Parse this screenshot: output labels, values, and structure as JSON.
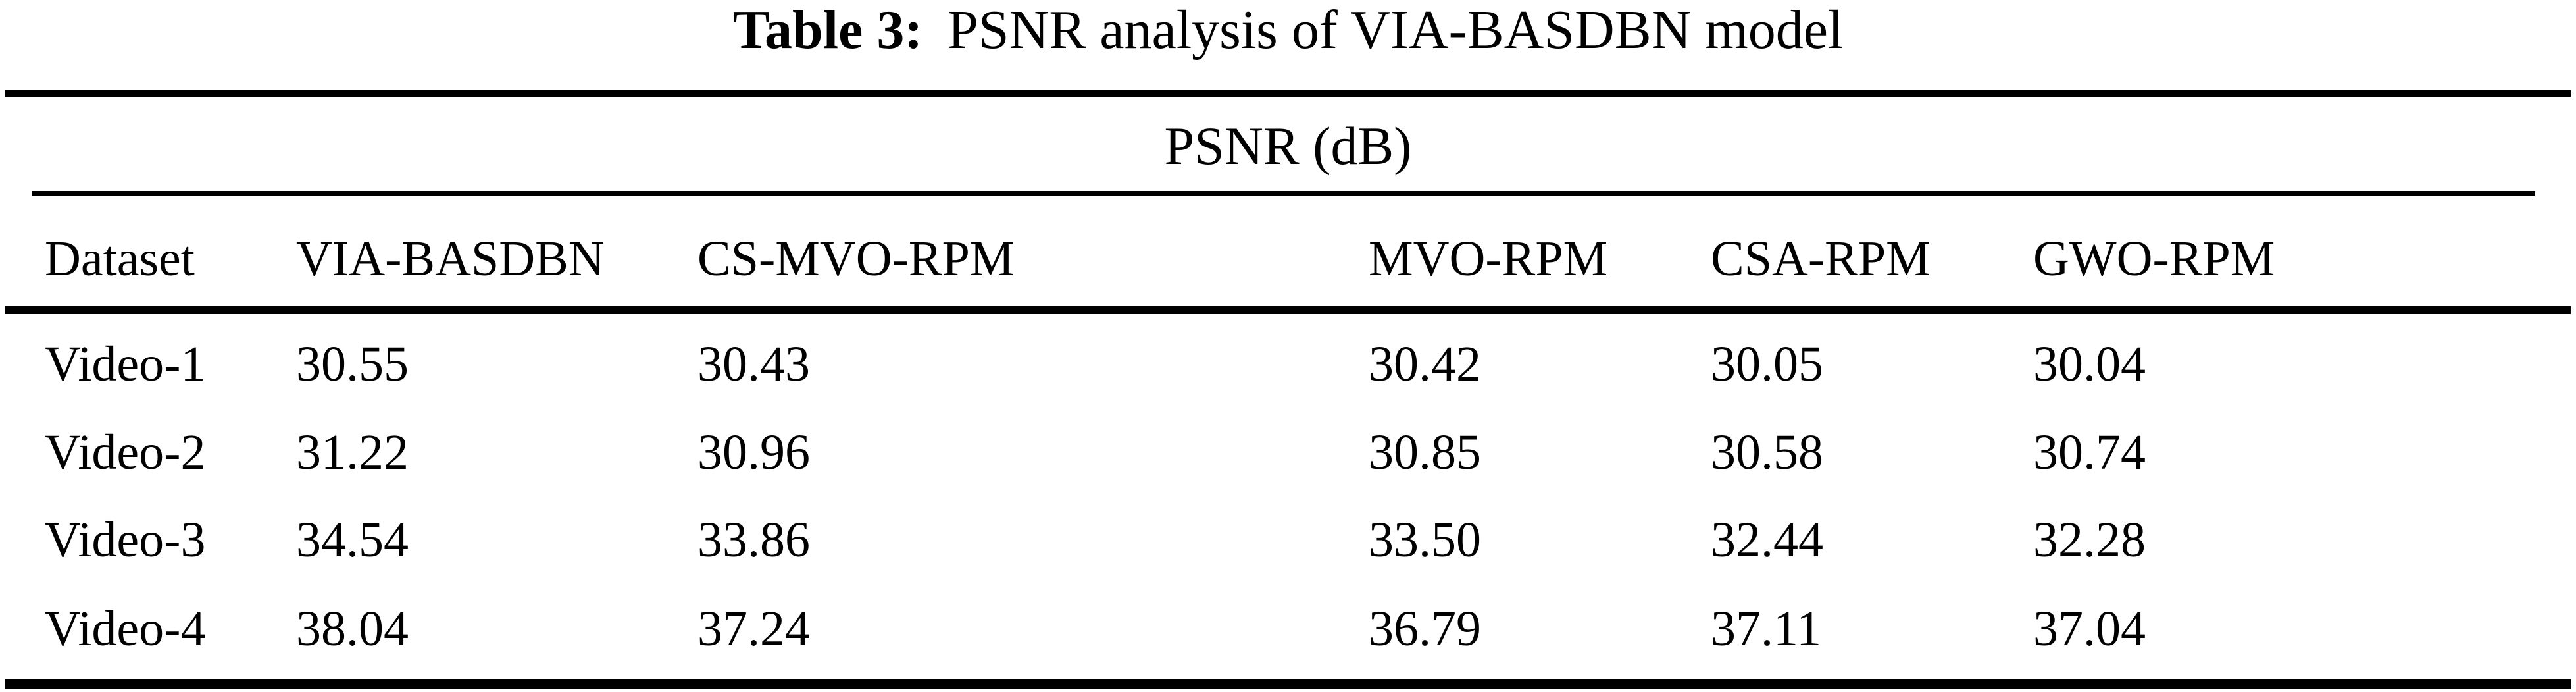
{
  "page": {
    "background_color": "#ffffff",
    "text_color": "#000000"
  },
  "caption": {
    "label": "Table 3:",
    "text": "PSNR analysis of VIA-BASDBN model"
  },
  "table": {
    "group_header": "PSNR (dB)",
    "columns": [
      "Dataset",
      "VIA-BASDBN",
      "CS-MVO-RPM",
      "MVO-RPM",
      "CSA-RPM",
      "GWO-RPM"
    ],
    "rows": [
      {
        "dataset": "Video-1",
        "values": [
          "30.55",
          "30.43",
          "30.42",
          "30.05",
          "30.04"
        ]
      },
      {
        "dataset": "Video-2",
        "values": [
          "31.22",
          "30.96",
          "30.85",
          "30.58",
          "30.74"
        ]
      },
      {
        "dataset": "Video-3",
        "values": [
          "34.54",
          "33.86",
          "33.50",
          "32.44",
          "32.28"
        ]
      },
      {
        "dataset": "Video-4",
        "values": [
          "38.04",
          "37.24",
          "36.79",
          "37.11",
          "37.04"
        ]
      }
    ]
  },
  "chart_data": {
    "type": "table",
    "title": "Table 3: PSNR analysis of VIA-BASDBN model",
    "unit_header": "PSNR (dB)",
    "columns": [
      "Dataset",
      "VIA-BASDBN",
      "CS-MVO-RPM",
      "MVO-RPM",
      "CSA-RPM",
      "GWO-RPM"
    ],
    "rows": [
      [
        "Video-1",
        30.55,
        30.43,
        30.42,
        30.05,
        30.04
      ],
      [
        "Video-2",
        31.22,
        30.96,
        30.85,
        30.58,
        30.74
      ],
      [
        "Video-3",
        34.54,
        33.86,
        33.5,
        32.44,
        32.28
      ],
      [
        "Video-4",
        38.04,
        37.24,
        36.79,
        37.11,
        37.04
      ]
    ]
  }
}
